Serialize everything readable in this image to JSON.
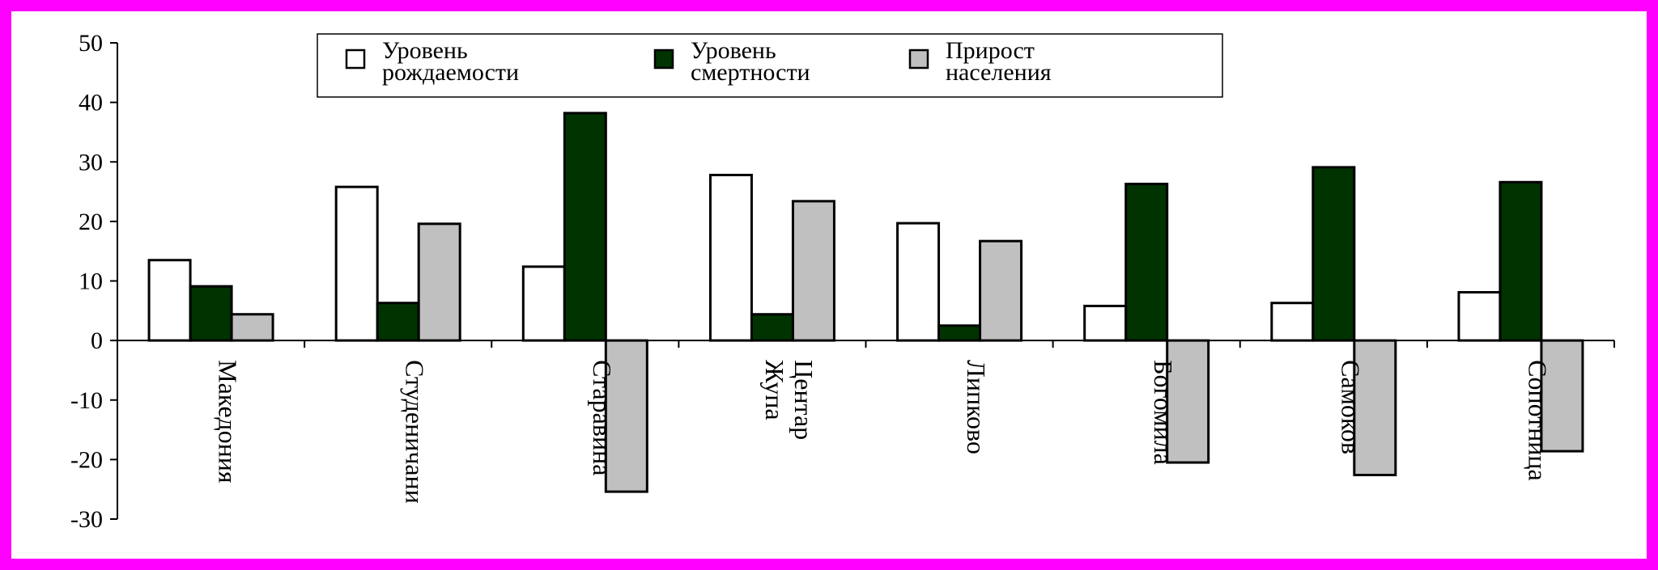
{
  "chart_data": {
    "type": "bar",
    "categories": [
      [
        "Македония"
      ],
      [
        "Студеничани"
      ],
      [
        "Старавина"
      ],
      [
        "Центар",
        "Жупа"
      ],
      [
        "Липково"
      ],
      [
        "Богомила"
      ],
      [
        "Самоков"
      ],
      [
        "Сопотница"
      ]
    ],
    "series": [
      {
        "name": [
          "Уровень",
          "рождаемости"
        ],
        "color": "#ffffff",
        "values": [
          13.5,
          25.8,
          12.4,
          27.8,
          19.7,
          5.8,
          6.3,
          8.1
        ]
      },
      {
        "name": [
          "Уровень",
          "смертности"
        ],
        "color": "#003300",
        "values": [
          9.1,
          6.3,
          38.2,
          4.4,
          2.5,
          26.3,
          29.1,
          26.6
        ]
      },
      {
        "name": [
          "Прирост",
          "населения"
        ],
        "color": "#c0c0c0",
        "values": [
          4.4,
          19.6,
          -25.4,
          23.4,
          16.7,
          -20.5,
          -22.6,
          -18.6
        ]
      }
    ],
    "ylim": [
      -30,
      50
    ],
    "yticks": [
      50,
      40,
      30,
      20,
      10,
      0,
      -10,
      -20,
      -30
    ],
    "legend_position": "top",
    "grid": false
  }
}
